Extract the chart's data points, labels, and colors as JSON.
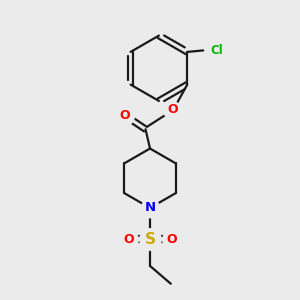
{
  "background_color": "#ebebeb",
  "bond_color": "#1a1a1a",
  "atom_colors": {
    "O": "#ff0000",
    "N": "#0000ff",
    "S": "#ccaa00",
    "Cl": "#00bb00"
  },
  "figsize": [
    3.0,
    3.0
  ],
  "dpi": 100,
  "lw": 1.6
}
